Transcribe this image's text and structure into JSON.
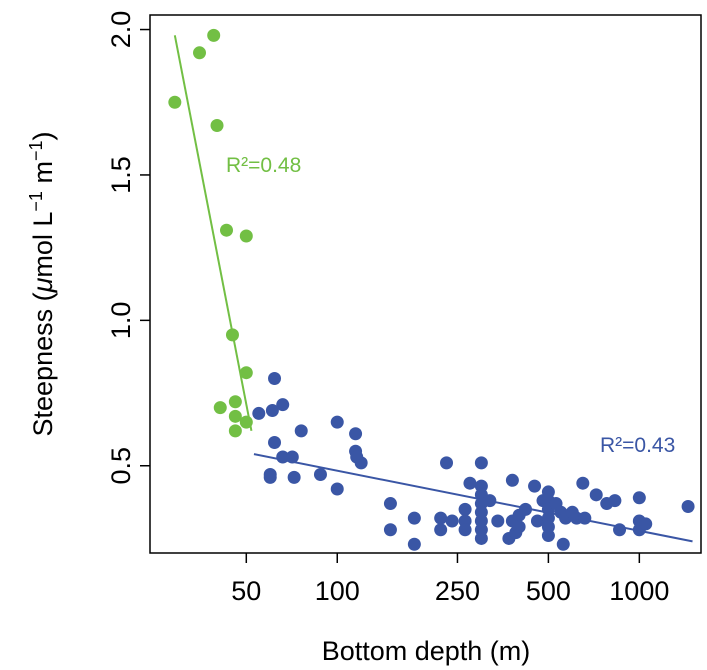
{
  "chart_data": {
    "type": "scatter",
    "xlabel": "Bottom depth (m)",
    "ylabel": {
      "prefix": "Steepness (",
      "mu": "μ",
      "unit": "mol L",
      "exp1": "−1",
      "mid": " m",
      "exp2": "−1",
      "suffix": ")"
    },
    "x_scale": "log",
    "xlim": [
      24,
      1600
    ],
    "ylim": [
      0.2,
      2.05
    ],
    "x_ticks": [
      50,
      100,
      250,
      500,
      1000
    ],
    "x_tick_labels": [
      "50",
      "100",
      "250",
      "500",
      "1000"
    ],
    "y_ticks": [
      0.5,
      1.0,
      1.5,
      2.0
    ],
    "y_tick_labels": [
      "0.5",
      "1.0",
      "1.5",
      "2.0"
    ],
    "grid": false,
    "legend": "none",
    "series": [
      {
        "color": "#72bf44",
        "r2_label": "R²=0.48",
        "fit": [
          [
            29,
            1.98
          ],
          [
            52,
            0.62
          ]
        ],
        "points": [
          [
            29,
            1.75
          ],
          [
            35,
            1.92
          ],
          [
            39,
            1.98
          ],
          [
            40,
            1.67
          ],
          [
            43,
            1.31
          ],
          [
            50,
            1.29
          ],
          [
            45,
            0.95
          ],
          [
            50,
            0.82
          ],
          [
            41,
            0.7
          ],
          [
            46,
            0.72
          ],
          [
            46,
            0.67
          ],
          [
            50,
            0.65
          ],
          [
            46,
            0.62
          ]
        ]
      },
      {
        "color": "#3a56a5",
        "r2_label": "R²=0.43",
        "fit": [
          [
            53,
            0.54
          ],
          [
            1500,
            0.24
          ]
        ],
        "points": [
          [
            55,
            0.68
          ],
          [
            61,
            0.69
          ],
          [
            62,
            0.8
          ],
          [
            66,
            0.71
          ],
          [
            60,
            0.47
          ],
          [
            60,
            0.46
          ],
          [
            66,
            0.53
          ],
          [
            62,
            0.58
          ],
          [
            71,
            0.53
          ],
          [
            76,
            0.62
          ],
          [
            72,
            0.46
          ],
          [
            88,
            0.47
          ],
          [
            100,
            0.65
          ],
          [
            100,
            0.42
          ],
          [
            115,
            0.61
          ],
          [
            115,
            0.55
          ],
          [
            116,
            0.53
          ],
          [
            120,
            0.51
          ],
          [
            150,
            0.37
          ],
          [
            150,
            0.28
          ],
          [
            180,
            0.32
          ],
          [
            180,
            0.23
          ],
          [
            220,
            0.32
          ],
          [
            220,
            0.28
          ],
          [
            230,
            0.51
          ],
          [
            240,
            0.31
          ],
          [
            265,
            0.35
          ],
          [
            265,
            0.31
          ],
          [
            265,
            0.28
          ],
          [
            275,
            0.44
          ],
          [
            300,
            0.51
          ],
          [
            300,
            0.43
          ],
          [
            300,
            0.4
          ],
          [
            300,
            0.37
          ],
          [
            300,
            0.34
          ],
          [
            300,
            0.31
          ],
          [
            300,
            0.28
          ],
          [
            300,
            0.25
          ],
          [
            320,
            0.38
          ],
          [
            340,
            0.31
          ],
          [
            370,
            0.25
          ],
          [
            380,
            0.45
          ],
          [
            380,
            0.31
          ],
          [
            390,
            0.27
          ],
          [
            400,
            0.33
          ],
          [
            400,
            0.29
          ],
          [
            420,
            0.35
          ],
          [
            450,
            0.43
          ],
          [
            460,
            0.31
          ],
          [
            480,
            0.38
          ],
          [
            500,
            0.41
          ],
          [
            500,
            0.38
          ],
          [
            500,
            0.35
          ],
          [
            500,
            0.32
          ],
          [
            500,
            0.29
          ],
          [
            500,
            0.26
          ],
          [
            530,
            0.37
          ],
          [
            550,
            0.34
          ],
          [
            560,
            0.23
          ],
          [
            570,
            0.32
          ],
          [
            600,
            0.34
          ],
          [
            620,
            0.32
          ],
          [
            650,
            0.44
          ],
          [
            660,
            0.32
          ],
          [
            720,
            0.4
          ],
          [
            780,
            0.37
          ],
          [
            830,
            0.38
          ],
          [
            860,
            0.28
          ],
          [
            1000,
            0.39
          ],
          [
            1000,
            0.31
          ],
          [
            1000,
            0.28
          ],
          [
            1050,
            0.3
          ],
          [
            1450,
            0.36
          ]
        ]
      }
    ]
  }
}
